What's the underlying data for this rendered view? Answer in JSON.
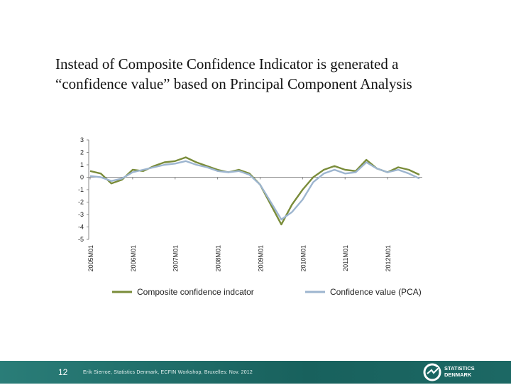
{
  "slide": {
    "heading_line1": "Instead of Composite Confidence Indicator is generated a",
    "heading_line2": "“confidence value” based on Principal Component Analysis"
  },
  "footer": {
    "page_number": "12",
    "credit": "Erik Sierroe, Statistics Denmark, ECFIN Workshop, Bruxelles: Nov. 2012",
    "logo_line1": "STATISTICS",
    "logo_line2": "DENMARK"
  },
  "colors": {
    "composite": "#7a8c3a",
    "pca": "#9db5cf",
    "axis": "#888888",
    "footer": "#1f6f6b"
  },
  "chart_data": {
    "type": "line",
    "title": "",
    "xlabel": "",
    "ylabel": "",
    "ylim": [
      -5,
      3
    ],
    "y_ticks": [
      "3",
      "2",
      "1",
      "0",
      "-1",
      "-2",
      "-3",
      "-4",
      "-5"
    ],
    "x_tick_labels": [
      "2005M01",
      "2006M01",
      "2007M01",
      "2008M01",
      "2009M01",
      "2010M01",
      "2011M01",
      "2012M01"
    ],
    "x": [
      "2005M01",
      "2005M04",
      "2005M07",
      "2005M10",
      "2006M01",
      "2006M04",
      "2006M07",
      "2006M10",
      "2007M01",
      "2007M04",
      "2007M07",
      "2007M10",
      "2008M01",
      "2008M04",
      "2008M07",
      "2008M10",
      "2009M01",
      "2009M04",
      "2009M07",
      "2009M10",
      "2010M01",
      "2010M04",
      "2010M07",
      "2010M10",
      "2011M01",
      "2011M04",
      "2011M07",
      "2011M10",
      "2012M01",
      "2012M04",
      "2012M07",
      "2012M10"
    ],
    "series": [
      {
        "name": "Composite confidence indcator",
        "values": [
          0.5,
          0.3,
          -0.5,
          -0.2,
          0.6,
          0.5,
          0.9,
          1.2,
          1.3,
          1.6,
          1.2,
          0.9,
          0.6,
          0.4,
          0.6,
          0.3,
          -0.6,
          -2.2,
          -3.8,
          -2.2,
          -1.0,
          0.0,
          0.6,
          0.9,
          0.6,
          0.5,
          1.4,
          0.7,
          0.4,
          0.8,
          0.6,
          0.2
        ]
      },
      {
        "name": "Confidence value (PCA)",
        "values": [
          0.1,
          0.0,
          -0.3,
          -0.1,
          0.4,
          0.6,
          0.8,
          1.0,
          1.1,
          1.3,
          1.0,
          0.8,
          0.5,
          0.4,
          0.5,
          0.2,
          -0.6,
          -2.0,
          -3.4,
          -2.8,
          -1.8,
          -0.4,
          0.3,
          0.6,
          0.3,
          0.4,
          1.2,
          0.7,
          0.4,
          0.6,
          0.3,
          -0.1
        ]
      }
    ],
    "legend_position": "bottom"
  }
}
